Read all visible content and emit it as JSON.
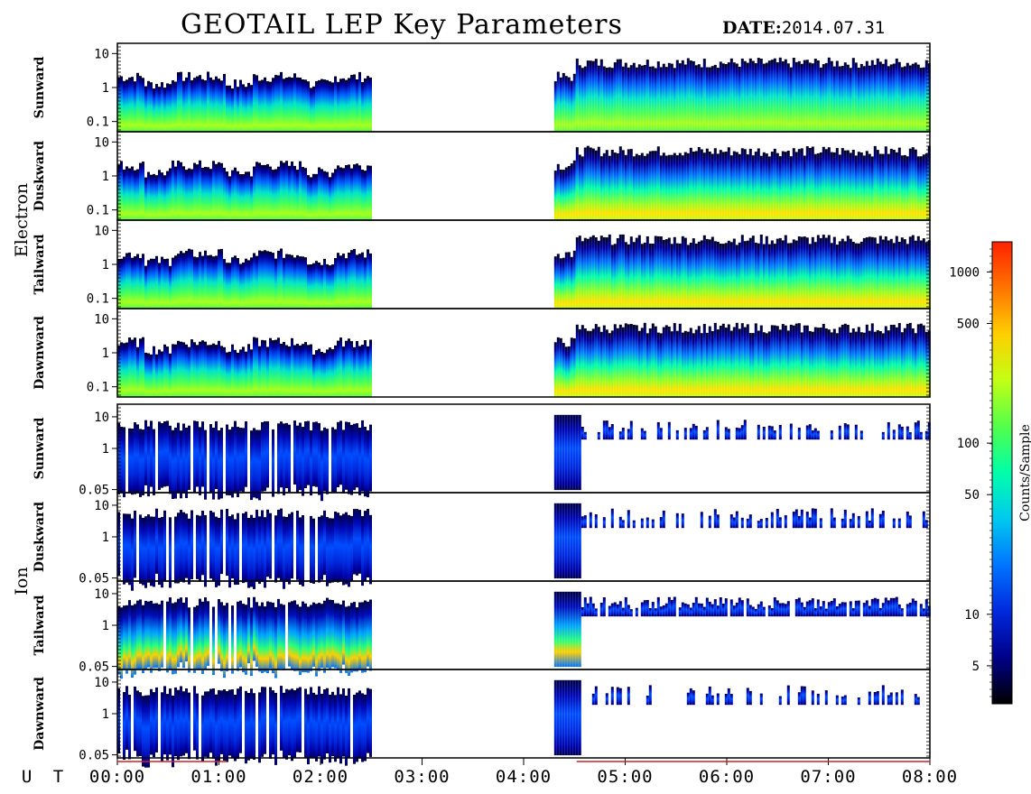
{
  "header": {
    "title": "GEOTAIL LEP Key Parameters",
    "date_label": "DATE:",
    "date_value": "2014.07.31"
  },
  "colors": {
    "background": "#ffffff",
    "frame": "#000000",
    "time_bar": "#cc2222"
  },
  "chart_data": {
    "type": "heatmap",
    "xlabel": "U T",
    "x_ticks": [
      "00:00",
      "01:00",
      "02:00",
      "03:00",
      "04:00",
      "05:00",
      "06:00",
      "07:00",
      "08:00"
    ],
    "x_range_hours": [
      0,
      8
    ],
    "data_gap_hours": [
      2.5,
      4.3
    ],
    "colorbar": {
      "label": "Counts/Sample",
      "scale": "log",
      "range": [
        3,
        1500
      ],
      "ticks": [
        5,
        10,
        50,
        100,
        500,
        1000
      ],
      "tick_labels": [
        "5",
        "10",
        "50",
        "100",
        "500",
        "1000"
      ],
      "colormap": [
        "#000000",
        "#0000aa",
        "#0044ff",
        "#00bbff",
        "#00ffaa",
        "#66ff33",
        "#ffff00",
        "#ff8800",
        "#ff2200"
      ]
    },
    "groups": [
      {
        "name": "Electron",
        "yscale": "log",
        "ylim": [
          0.05,
          20
        ],
        "panels": [
          {
            "name": "Sunward",
            "y_ticks": [
              "10",
              "1",
              "0.1"
            ]
          },
          {
            "name": "Duskward",
            "y_ticks": [
              "10",
              "1",
              "0.1"
            ]
          },
          {
            "name": "Tailward",
            "y_ticks": [
              "10",
              "1",
              "0.1"
            ]
          },
          {
            "name": "Dawnward",
            "y_ticks": [
              "10",
              "1",
              "0.1"
            ]
          }
        ]
      },
      {
        "name": "Ion",
        "yscale": "log",
        "ylim": [
          0.04,
          25
        ],
        "panels": [
          {
            "name": "Sunward",
            "y_ticks": [
              "10",
              "1",
              "0.05"
            ]
          },
          {
            "name": "Duskward",
            "y_ticks": [
              "10",
              "1",
              "0.05"
            ]
          },
          {
            "name": "Tailward",
            "y_ticks": [
              "10",
              "1",
              "0.05"
            ]
          },
          {
            "name": "Dawnward",
            "y_ticks": [
              "10",
              "1",
              "0.05"
            ]
          }
        ]
      }
    ]
  }
}
